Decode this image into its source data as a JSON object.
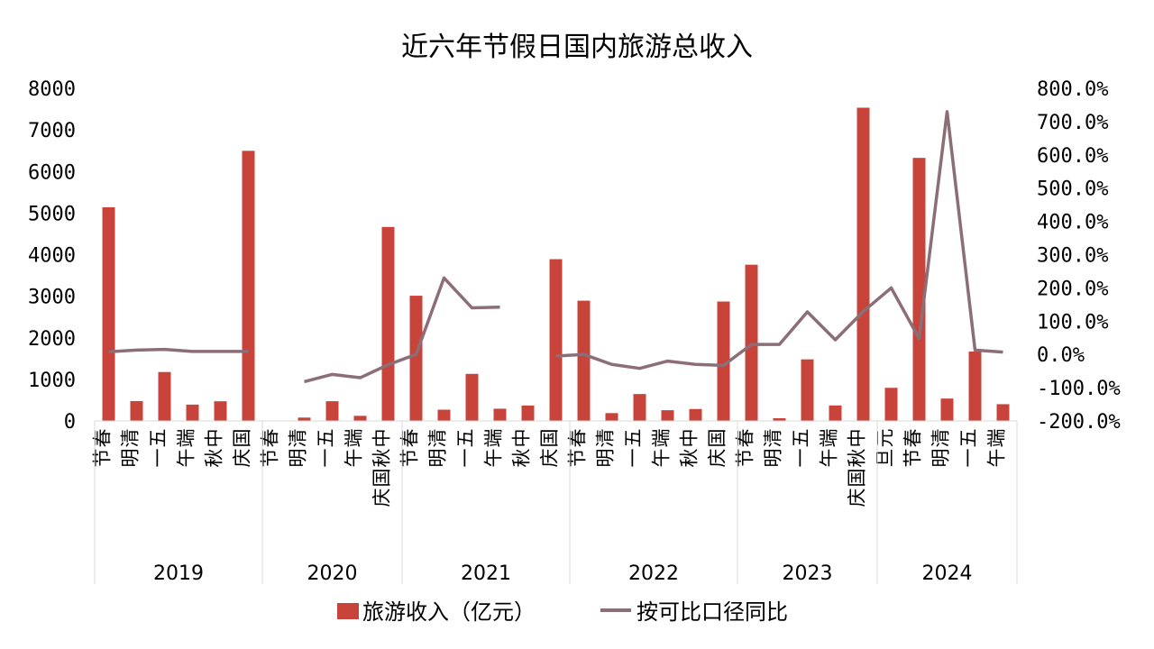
{
  "chart_data": {
    "type": "bar",
    "title": "近六年节假日国内旅游总收入",
    "colors": {
      "bar": "#C8443A",
      "line": "#8C6E76",
      "axis": "#D9D9D9"
    },
    "y_left": {
      "ticks": [
        "0",
        "1000",
        "2000",
        "3000",
        "4000",
        "5000",
        "6000",
        "7000",
        "8000"
      ],
      "ylim": [
        0,
        8000
      ]
    },
    "y_right": {
      "ticks": [
        "-200.0%",
        "-100.0%",
        "0.0%",
        "100.0%",
        "200.0%",
        "300.0%",
        "400.0%",
        "500.0%",
        "600.0%",
        "700.0%",
        "800.0%"
      ],
      "ylim": [
        -200,
        800
      ],
      "unit": "%"
    },
    "legend_position": "bottom",
    "categories": [
      {
        "label": "春节",
        "year": "2019"
      },
      {
        "label": "清明",
        "year": "2019"
      },
      {
        "label": "五一",
        "year": "2019"
      },
      {
        "label": "端午",
        "year": "2019"
      },
      {
        "label": "中秋",
        "year": "2019"
      },
      {
        "label": "国庆",
        "year": "2019"
      },
      {
        "label": "春节",
        "year": "2020"
      },
      {
        "label": "清明",
        "year": "2020"
      },
      {
        "label": "五一",
        "year": "2020"
      },
      {
        "label": "端午",
        "year": "2020"
      },
      {
        "label": "中秋国庆",
        "year": "2020"
      },
      {
        "label": "春节",
        "year": "2021"
      },
      {
        "label": "清明",
        "year": "2021"
      },
      {
        "label": "五一",
        "year": "2021"
      },
      {
        "label": "端午",
        "year": "2021"
      },
      {
        "label": "中秋",
        "year": "2021"
      },
      {
        "label": "国庆",
        "year": "2021"
      },
      {
        "label": "春节",
        "year": "2022"
      },
      {
        "label": "清明",
        "year": "2022"
      },
      {
        "label": "五一",
        "year": "2022"
      },
      {
        "label": "端午",
        "year": "2022"
      },
      {
        "label": "中秋",
        "year": "2022"
      },
      {
        "label": "国庆",
        "year": "2022"
      },
      {
        "label": "春节",
        "year": "2023"
      },
      {
        "label": "清明",
        "year": "2023"
      },
      {
        "label": "五一",
        "year": "2023"
      },
      {
        "label": "端午",
        "year": "2023"
      },
      {
        "label": "中秋国庆",
        "year": "2023"
      },
      {
        "label": "元旦",
        "year": "2024"
      },
      {
        "label": "春节",
        "year": "2024"
      },
      {
        "label": "清明",
        "year": "2024"
      },
      {
        "label": "五一",
        "year": "2024"
      },
      {
        "label": "端午",
        "year": "2024"
      }
    ],
    "years": [
      "2019",
      "2020",
      "2021",
      "2022",
      "2023",
      "2024"
    ],
    "series": [
      {
        "name": "旅游收入（亿元）",
        "type": "bar",
        "axis": "left",
        "values": [
          5139,
          478,
          1177,
          393,
          473,
          6497,
          0,
          81,
          475,
          123,
          4666,
          3012,
          271,
          1132,
          294,
          371,
          3891,
          2892,
          188,
          647,
          258,
          287,
          2872,
          3758,
          65,
          1481,
          373,
          7534,
          797,
          6327,
          539,
          1669,
          403
        ]
      },
      {
        "name": "按可比口径同比",
        "type": "line",
        "axis": "right",
        "values": [
          8,
          13,
          15,
          9,
          9,
          9,
          null,
          -82,
          -60,
          -70,
          -31,
          0,
          230,
          140,
          142,
          null,
          -5,
          0,
          -30,
          -42,
          -20,
          -30,
          -33,
          30,
          30,
          128,
          44,
          129,
          200,
          48,
          730,
          13,
          7
        ]
      }
    ]
  }
}
